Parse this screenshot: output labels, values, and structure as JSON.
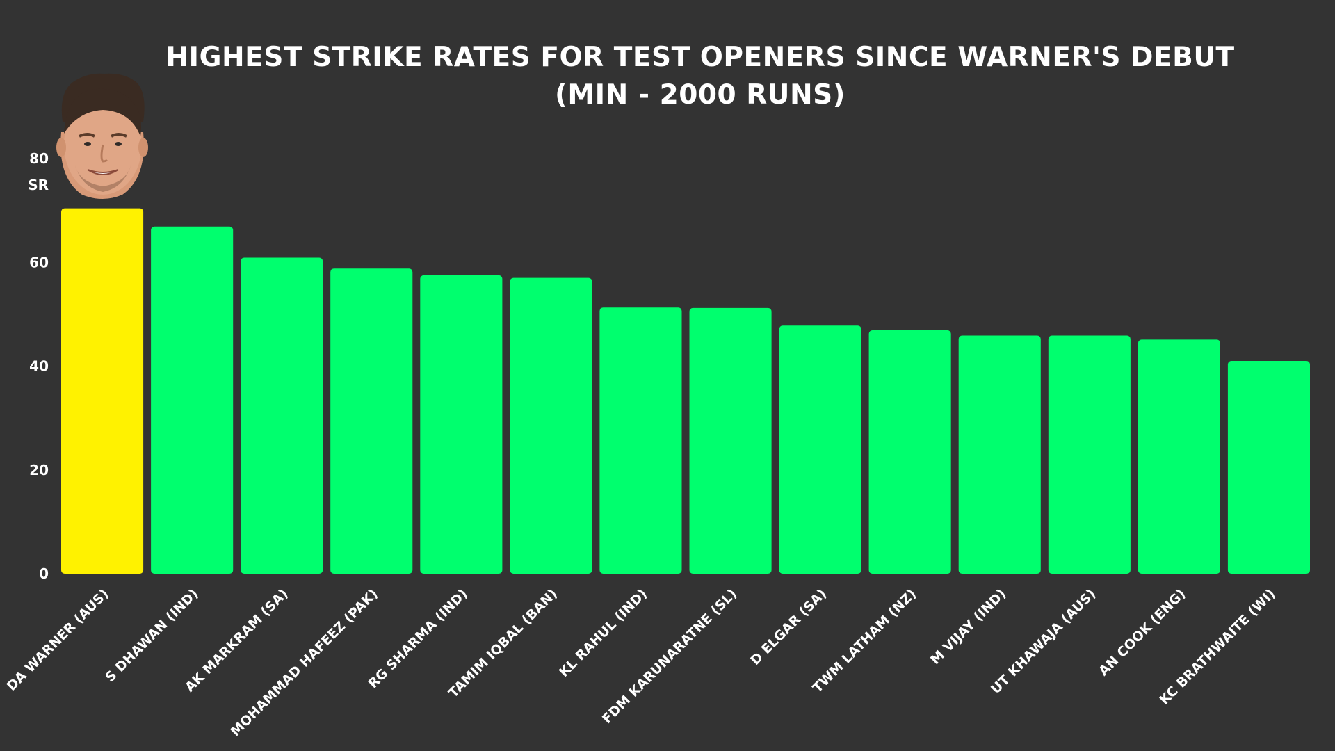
{
  "chart_data": {
    "type": "bar",
    "title": "HIGHEST STRIKE RATES FOR TEST OPENERS SINCE WARNER'S DEBUT",
    "subtitle": "(MIN - 2000 RUNS)",
    "ylabel": "SR",
    "xlabel": "",
    "ylim": [
      0,
      80
    ],
    "yticks": [
      0,
      20,
      40,
      60,
      80
    ],
    "grid": false,
    "legend": "none",
    "categories": [
      "DA WARNER (AUS)",
      "S DHAWAN (IND)",
      "AK MARKRAM (SA)",
      "MOHAMMAD HAFEEZ (PAK)",
      "RG SHARMA (IND)",
      "TAMIM IQBAL (BAN)",
      "KL RAHUL (IND)",
      "FDM KARUNARATNE (SL)",
      "D ELGAR (SA)",
      "TWM LATHAM (NZ)",
      "M VIJAY (IND)",
      "UT KHAWAJA (AUS)",
      "AN COOK (ENG)",
      "KC BRATHWAITE (WI)"
    ],
    "values": [
      70.4,
      66.9,
      60.9,
      58.8,
      57.5,
      57.0,
      51.3,
      51.2,
      47.8,
      46.9,
      45.9,
      45.9,
      45.1,
      41.0
    ],
    "highlight_index": 0,
    "colors": {
      "background": "#333333",
      "bar": "#00ff6e",
      "highlight": "#fff200",
      "text": "#ffffff"
    }
  }
}
